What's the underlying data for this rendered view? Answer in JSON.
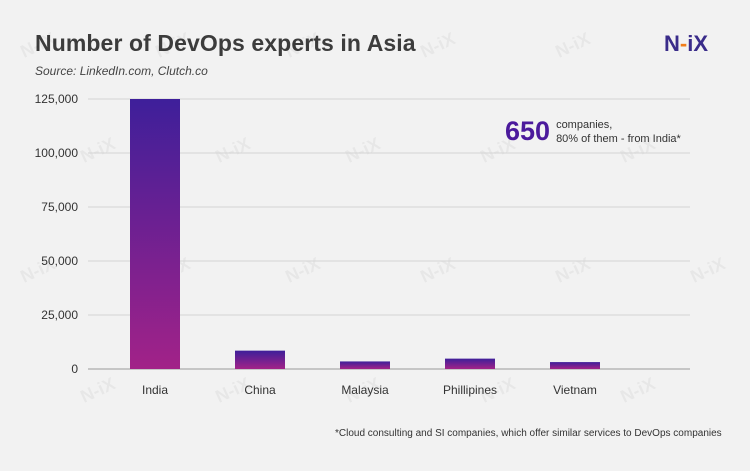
{
  "header": {
    "title": "Number of DevOps experts in Asia",
    "source": "Source: LinkedIn.com, Clutch.co",
    "brand_left": "N",
    "brand_dash": "-",
    "brand_right": "iX",
    "watermark": "N-iX"
  },
  "annotation": {
    "number": "650",
    "line1": "companies,",
    "line2": "80% of them - from India*"
  },
  "footnote": "*Cloud consulting and SI companies, which offer similar services to DevOps companies",
  "colors": {
    "bar_top": "#3e1f9a",
    "bar_bottom": "#a22288",
    "accent": "#4b1a9c",
    "brand_dash": "#f07d1a"
  },
  "chart_data": {
    "type": "bar",
    "categories": [
      "India",
      "China",
      "Malaysia",
      "Phillipines",
      "Vietnam"
    ],
    "values": [
      125000,
      8500,
      3500,
      4800,
      3200
    ],
    "ylim": [
      0,
      125000
    ],
    "yticks": [
      0,
      25000,
      50000,
      75000,
      100000,
      125000
    ],
    "ytick_labels": [
      "0",
      "25,000",
      "50,000",
      "75,000",
      "100,000",
      "125,000"
    ],
    "grid": true
  }
}
